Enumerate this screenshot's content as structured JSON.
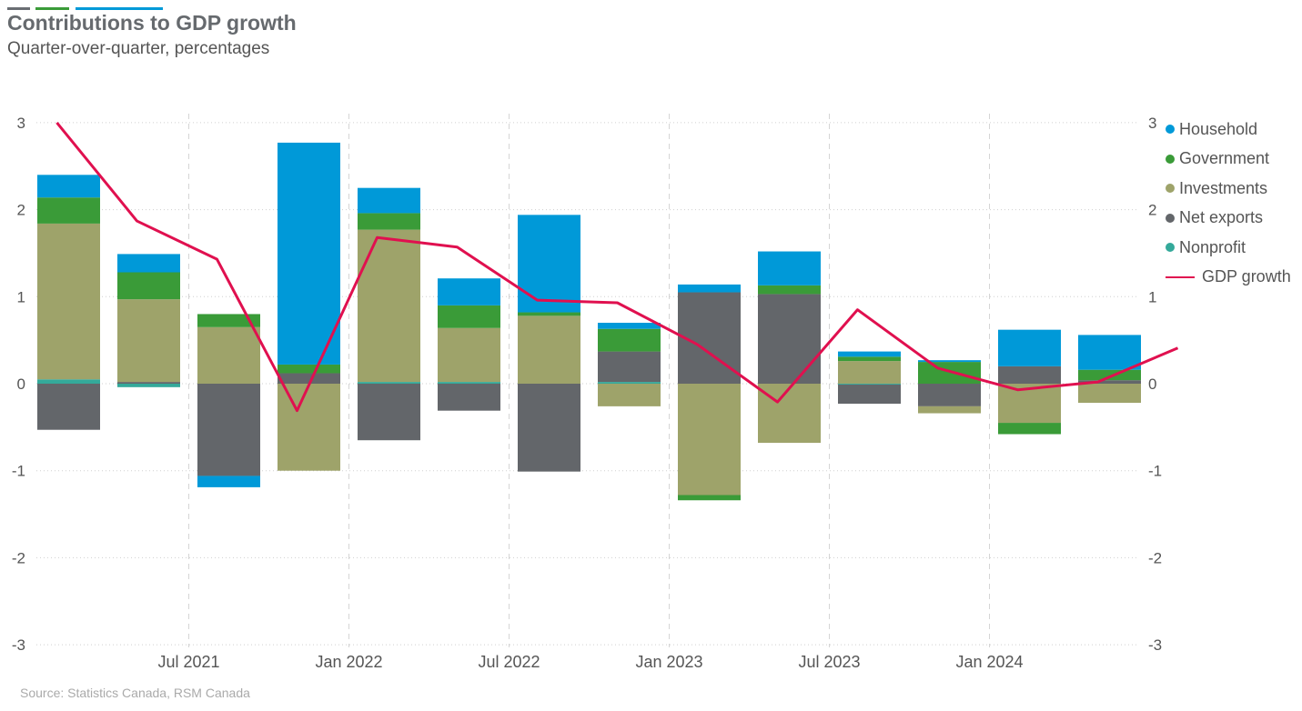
{
  "title": "Contributions to GDP growth",
  "subtitle": "Quarter-over-quarter, percentages",
  "source": "Source: Statistics Canada, RSM Canada",
  "colors": {
    "Household": "#0099d8",
    "Government": "#3a9b38",
    "Investments": "#9ea36a",
    "Net exports": "#63666a",
    "Nonprofit": "#34a99a",
    "GDP growth": "#e0104f"
  },
  "chart_data": {
    "type": "bar",
    "stacked": true,
    "title": "Contributions to GDP growth",
    "subtitle": "Quarter-over-quarter, percentages",
    "x_tick_labels": [
      "Jul 2021",
      "Jan 2022",
      "Jul 2022",
      "Jan 2023",
      "Jul 2023",
      "Jan 2024"
    ],
    "x_tick_index": [
      2,
      4,
      6,
      8,
      10,
      12
    ],
    "ylim": [
      -3,
      3
    ],
    "y_ticks": [
      "3",
      "2",
      "1",
      "0",
      "-1",
      "-2",
      "-3"
    ],
    "grid": true,
    "legend_position": "right",
    "series": [
      {
        "name": "Nonprofit",
        "values": [
          0.05,
          -0.04,
          0.0,
          0.0,
          0.02,
          0.02,
          0.0,
          0.02,
          0.0,
          0.0,
          -0.01,
          0.0,
          0.0,
          0.0,
          0.0,
          0.01
        ]
      },
      {
        "name": "Net exports",
        "values": [
          -0.53,
          0.02,
          -1.06,
          0.12,
          -0.65,
          -0.31,
          -1.01,
          0.35,
          1.05,
          1.03,
          -0.22,
          -0.26,
          0.2,
          0.04,
          0.0,
          0.0
        ]
      },
      {
        "name": "Investments",
        "values": [
          1.79,
          0.95,
          0.65,
          -1.0,
          1.75,
          0.62,
          0.78,
          -0.26,
          -1.28,
          -0.68,
          0.26,
          -0.08,
          -0.45,
          -0.22,
          0.0,
          0.0
        ]
      },
      {
        "name": "Government",
        "values": [
          0.3,
          0.31,
          0.15,
          0.1,
          0.19,
          0.26,
          0.04,
          0.26,
          -0.06,
          0.1,
          0.05,
          0.25,
          -0.13,
          0.12,
          0.0,
          0.0
        ]
      },
      {
        "name": "Household",
        "values": [
          0.26,
          0.21,
          -0.13,
          2.55,
          0.29,
          0.31,
          1.12,
          0.07,
          0.09,
          0.39,
          0.06,
          0.02,
          0.42,
          0.4,
          0.0,
          0.0
        ]
      }
    ],
    "line": {
      "name": "GDP growth",
      "values": [
        3.0,
        1.87,
        1.43,
        -0.31,
        1.68,
        1.57,
        0.96,
        0.93,
        0.45,
        -0.21,
        0.85,
        0.18,
        -0.07,
        0.02,
        0.41,
        null
      ]
    },
    "bar_count": 14
  },
  "legend": [
    {
      "name": "Household",
      "kind": "dot"
    },
    {
      "name": "Government",
      "kind": "dot"
    },
    {
      "name": "Investments",
      "kind": "dot"
    },
    {
      "name": "Net exports",
      "kind": "dot"
    },
    {
      "name": "Nonprofit",
      "kind": "dot"
    },
    {
      "name": "GDP growth",
      "kind": "line"
    }
  ]
}
